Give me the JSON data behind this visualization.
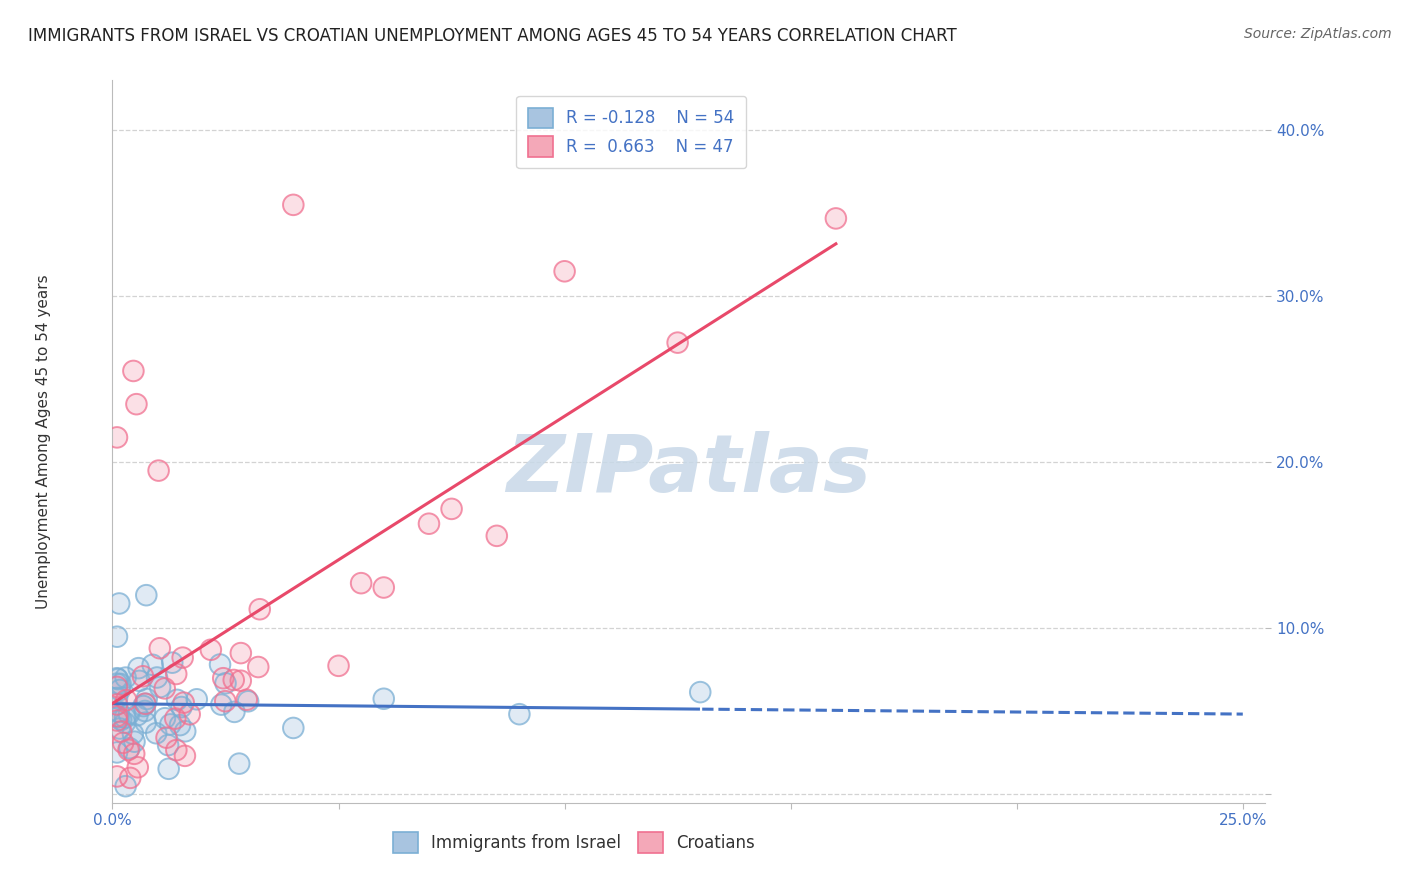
{
  "title": "IMMIGRANTS FROM ISRAEL VS CROATIAN UNEMPLOYMENT AMONG AGES 45 TO 54 YEARS CORRELATION CHART",
  "source": "Source: ZipAtlas.com",
  "ylabel": "Unemployment Among Ages 45 to 54 years",
  "xlim": [
    0.0,
    0.25
  ],
  "ylim": [
    0.0,
    0.42
  ],
  "blue_R": -0.128,
  "blue_N": 54,
  "pink_R": 0.663,
  "pink_N": 47,
  "blue_color": "#A8C4E0",
  "pink_color": "#F4A8B8",
  "blue_edge_color": "#7BAFD4",
  "pink_edge_color": "#F07090",
  "trend_blue_solid_color": "#4472C4",
  "trend_pink_solid_color": "#E8496A",
  "background_color": "#FFFFFF",
  "grid_color": "#C8C8C8",
  "watermark": "ZIPatlas",
  "watermark_color": "#C8D8E8",
  "tick_color": "#4472C4",
  "title_fontsize": 12,
  "axis_label_fontsize": 11,
  "tick_fontsize": 11,
  "legend_fontsize": 12
}
